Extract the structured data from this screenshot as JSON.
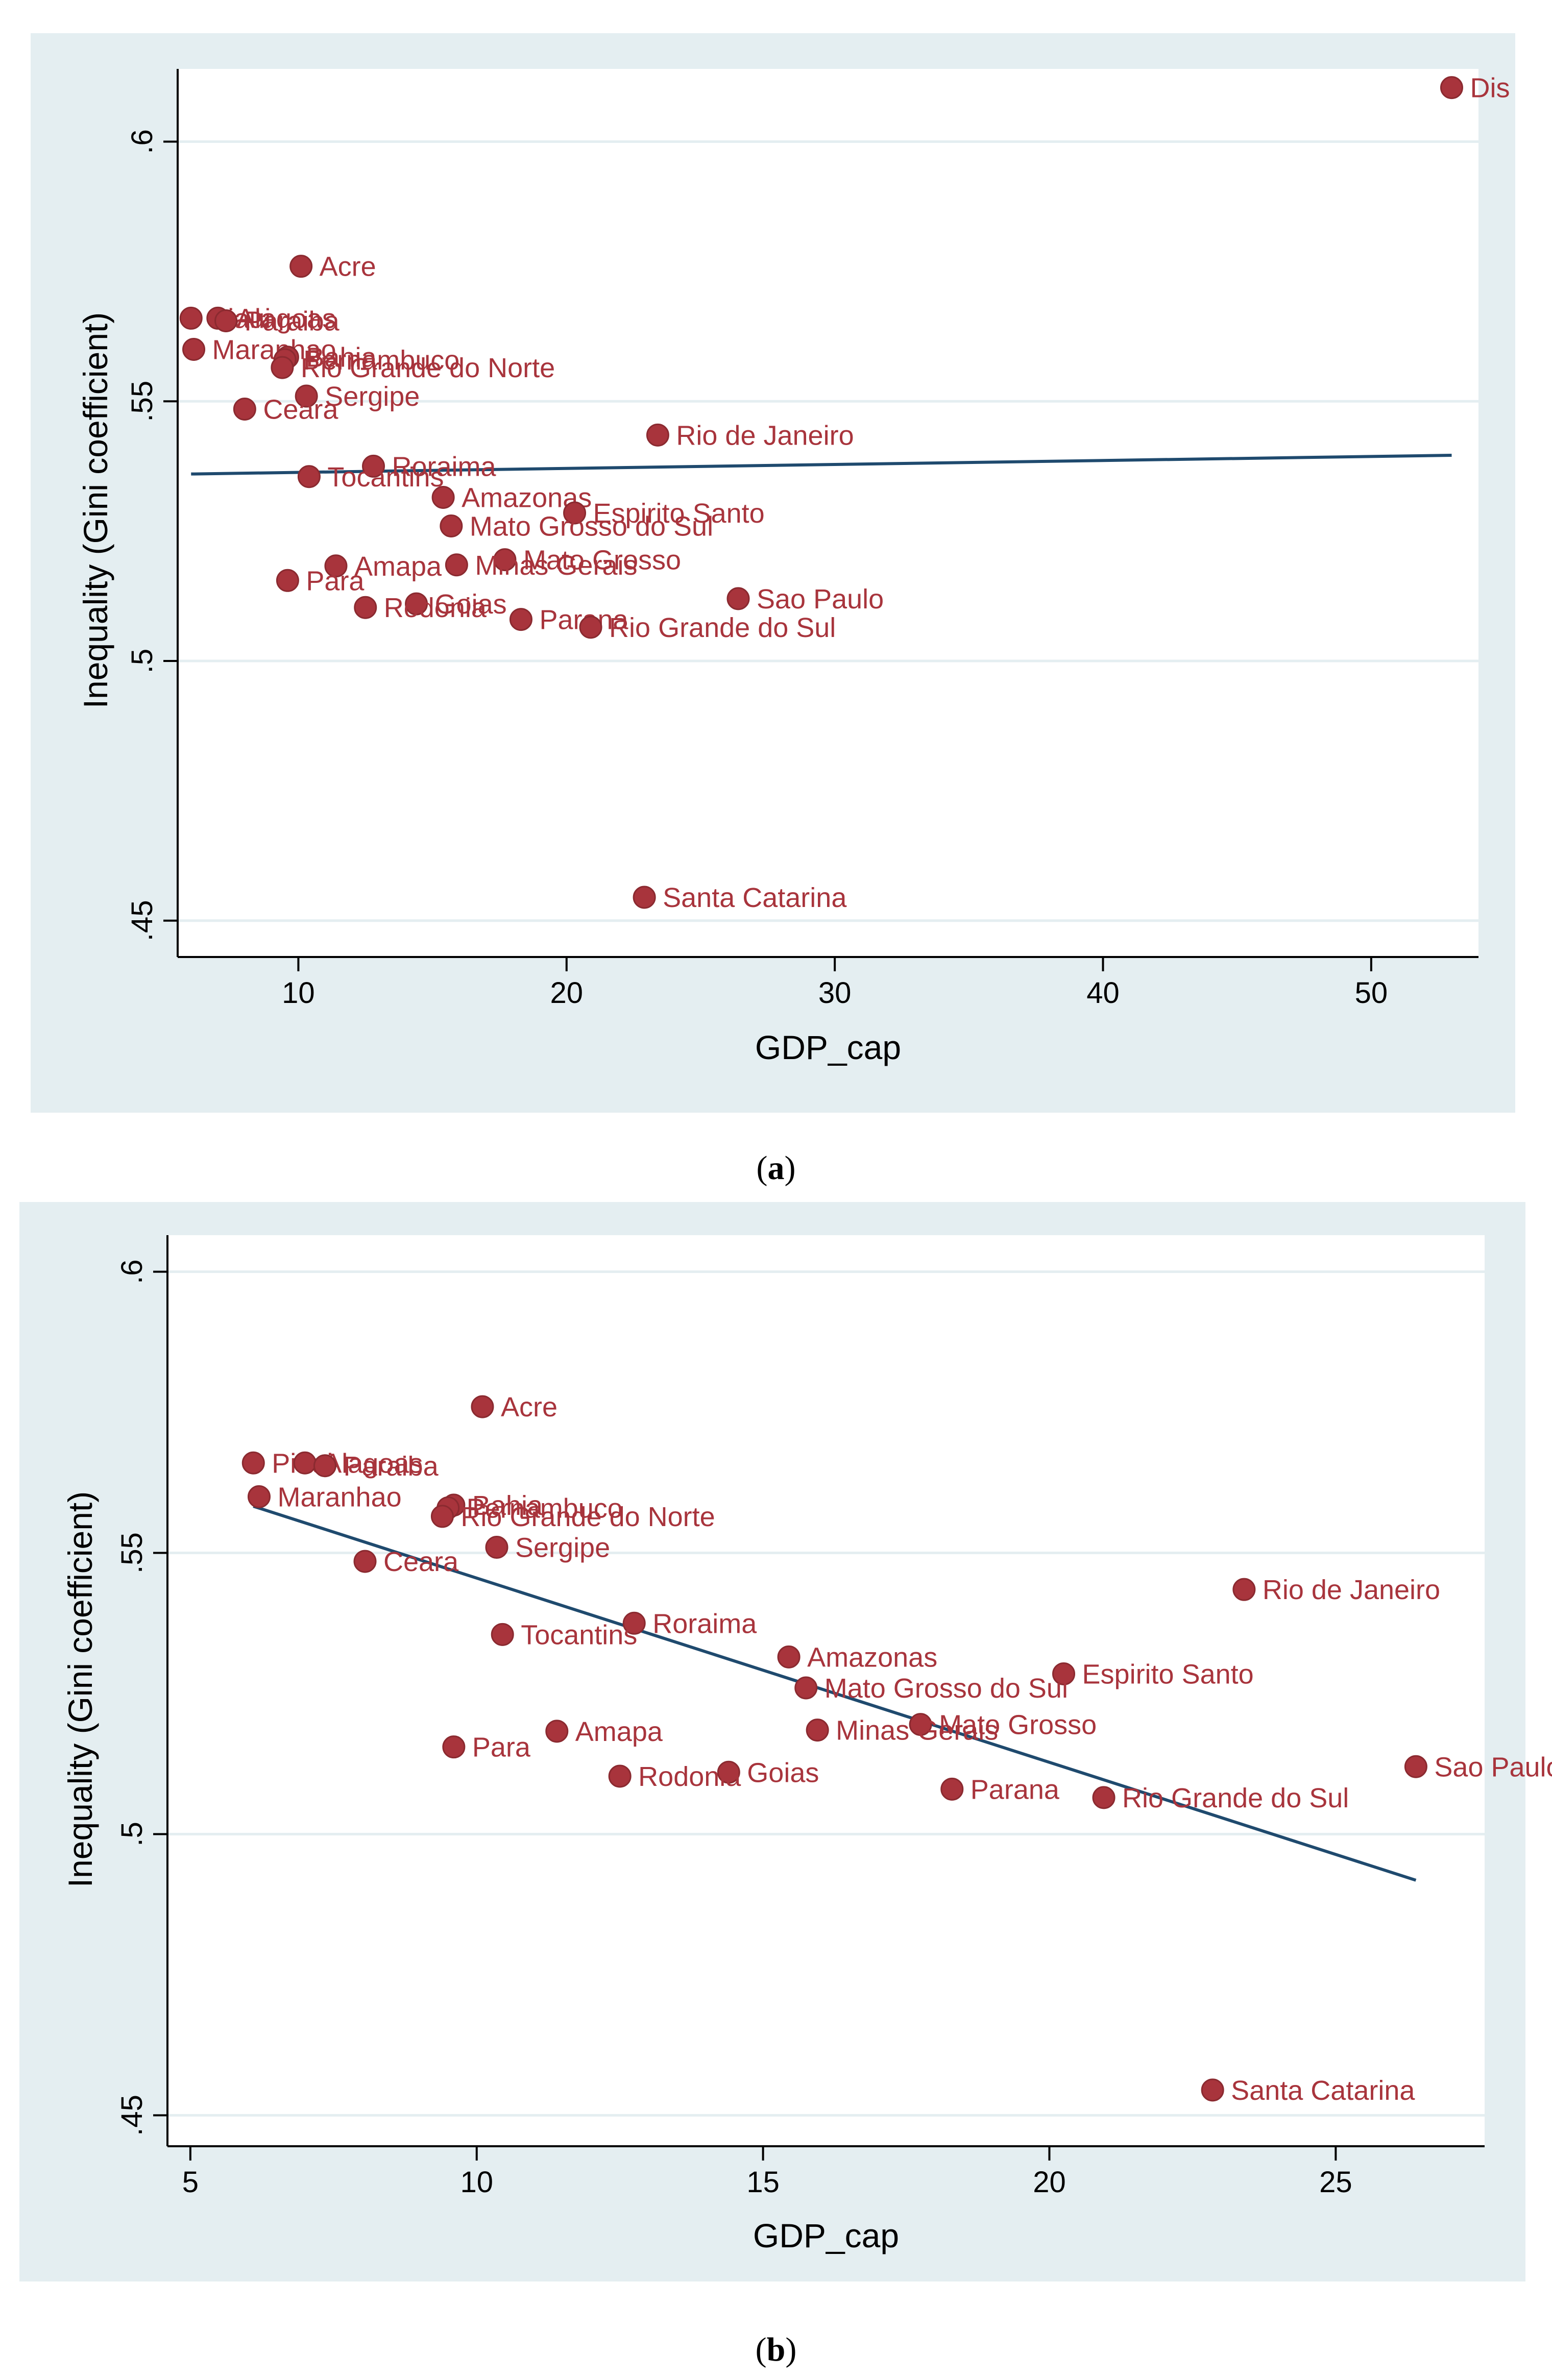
{
  "chart_data": [
    {
      "type": "scatter",
      "panel": "a",
      "caption": [
        "(",
        "a",
        ")"
      ],
      "xlabel": "GDP_cap",
      "ylabel": "Inequality (Gini coefficient)",
      "xlim": [
        5.5,
        54
      ],
      "ylim": [
        0.443,
        0.614
      ],
      "xticks": [
        {
          "v": 10,
          "label": "10"
        },
        {
          "v": 20,
          "label": "20"
        },
        {
          "v": 30,
          "label": "30"
        },
        {
          "v": 40,
          "label": "40"
        },
        {
          "v": 50,
          "label": "50"
        }
      ],
      "yticks": [
        {
          "v": 0.45,
          "label": ".45"
        },
        {
          "v": 0.5,
          "label": ".5"
        },
        {
          "v": 0.55,
          "label": ".55"
        },
        {
          "v": 0.6,
          "label": ".6"
        }
      ],
      "fit_line": {
        "x1": 6.0,
        "y1": 0.536,
        "x2": 53.0,
        "y2": 0.5396
      },
      "points": [
        {
          "label": "Dis",
          "x": 53.0,
          "y": 0.6104
        },
        {
          "label": "Acre",
          "x": 10.1,
          "y": 0.576
        },
        {
          "label": "Piaui",
          "x": 6.0,
          "y": 0.566
        },
        {
          "label": "Alagoas",
          "x": 7.0,
          "y": 0.566
        },
        {
          "label": "Paraiba",
          "x": 7.3,
          "y": 0.5655
        },
        {
          "label": "Maranhao",
          "x": 6.1,
          "y": 0.56
        },
        {
          "label": "Bahia",
          "x": 9.6,
          "y": 0.5585
        },
        {
          "label": "Pernambuco",
          "x": 9.5,
          "y": 0.558
        },
        {
          "label": "Rio Grande do Norte",
          "x": 9.4,
          "y": 0.5565
        },
        {
          "label": "Sergipe",
          "x": 10.3,
          "y": 0.551
        },
        {
          "label": "Ceara",
          "x": 8.0,
          "y": 0.5485
        },
        {
          "label": "Rio de Janeiro",
          "x": 23.4,
          "y": 0.5435
        },
        {
          "label": "Roraima",
          "x": 12.8,
          "y": 0.5375
        },
        {
          "label": "Tocantins",
          "x": 10.4,
          "y": 0.5355
        },
        {
          "label": "Amazonas",
          "x": 15.4,
          "y": 0.5315
        },
        {
          "label": "Espirito Santo",
          "x": 20.3,
          "y": 0.5285
        },
        {
          "label": "Mato Grosso do Sul",
          "x": 15.7,
          "y": 0.526
        },
        {
          "label": "Mato Grosso",
          "x": 17.7,
          "y": 0.5195
        },
        {
          "label": "Minas Gerais",
          "x": 15.9,
          "y": 0.5185
        },
        {
          "label": "Amapa",
          "x": 11.4,
          "y": 0.5183
        },
        {
          "label": "Para",
          "x": 9.6,
          "y": 0.5155
        },
        {
          "label": "Sao Paulo",
          "x": 26.4,
          "y": 0.512
        },
        {
          "label": "Goias",
          "x": 14.4,
          "y": 0.511
        },
        {
          "label": "Rodonia",
          "x": 12.5,
          "y": 0.5103
        },
        {
          "label": "Parana",
          "x": 18.3,
          "y": 0.508
        },
        {
          "label": "Rio Grande do Sul",
          "x": 20.9,
          "y": 0.5065
        },
        {
          "label": "Santa Catarina",
          "x": 22.9,
          "y": 0.4545
        }
      ]
    },
    {
      "type": "scatter",
      "panel": "b",
      "caption": [
        "(",
        "b",
        ")"
      ],
      "xlabel": "GDP_cap",
      "ylabel": "Inequality (Gini coefficient)",
      "xlim": [
        4.6,
        27.6
      ],
      "ylim": [
        0.4445,
        0.6065
      ],
      "xticks": [
        {
          "v": 5,
          "label": "5"
        },
        {
          "v": 10,
          "label": "10"
        },
        {
          "v": 15,
          "label": "15"
        },
        {
          "v": 20,
          "label": "20"
        },
        {
          "v": 25,
          "label": "25"
        }
      ],
      "yticks": [
        {
          "v": 0.45,
          "label": ".45"
        },
        {
          "v": 0.5,
          "label": ".5"
        },
        {
          "v": 0.55,
          "label": ".55"
        },
        {
          "v": 0.6,
          "label": ".6"
        }
      ],
      "fit_line": {
        "x1": 6.1,
        "y1": 0.5583,
        "x2": 26.4,
        "y2": 0.4918
      },
      "points": [
        {
          "label": "Acre",
          "x": 10.1,
          "y": 0.576
        },
        {
          "label": "Piaui",
          "x": 6.1,
          "y": 0.566
        },
        {
          "label": "Alagoas",
          "x": 7.0,
          "y": 0.566
        },
        {
          "label": "Paraiba",
          "x": 7.35,
          "y": 0.5655
        },
        {
          "label": "Maranhao",
          "x": 6.2,
          "y": 0.56
        },
        {
          "label": "Bahia",
          "x": 9.6,
          "y": 0.5585
        },
        {
          "label": "Pernambuco",
          "x": 9.5,
          "y": 0.558
        },
        {
          "label": "Rio Grande do Norte",
          "x": 9.4,
          "y": 0.5565
        },
        {
          "label": "Sergipe",
          "x": 10.35,
          "y": 0.551
        },
        {
          "label": "Ceara",
          "x": 8.05,
          "y": 0.5485
        },
        {
          "label": "Rio de Janeiro",
          "x": 23.4,
          "y": 0.5435
        },
        {
          "label": "Roraima",
          "x": 12.75,
          "y": 0.5375
        },
        {
          "label": "Tocantins",
          "x": 10.45,
          "y": 0.5355
        },
        {
          "label": "Amazonas",
          "x": 15.45,
          "y": 0.5315
        },
        {
          "label": "Espirito Santo",
          "x": 20.25,
          "y": 0.5285
        },
        {
          "label": "Mato Grosso do Sul",
          "x": 15.75,
          "y": 0.526
        },
        {
          "label": "Mato Grosso",
          "x": 17.75,
          "y": 0.5195
        },
        {
          "label": "Minas Gerais",
          "x": 15.95,
          "y": 0.5185
        },
        {
          "label": "Amapa",
          "x": 11.4,
          "y": 0.5183
        },
        {
          "label": "Para",
          "x": 9.6,
          "y": 0.5155
        },
        {
          "label": "Sao Paulo",
          "x": 26.4,
          "y": 0.512
        },
        {
          "label": "Goias",
          "x": 14.4,
          "y": 0.511
        },
        {
          "label": "Rodonia",
          "x": 12.5,
          "y": 0.5103
        },
        {
          "label": "Parana",
          "x": 18.3,
          "y": 0.508
        },
        {
          "label": "Rio Grande do Sul",
          "x": 20.95,
          "y": 0.5065
        },
        {
          "label": "Santa Catarina",
          "x": 22.85,
          "y": 0.4545
        }
      ]
    }
  ]
}
